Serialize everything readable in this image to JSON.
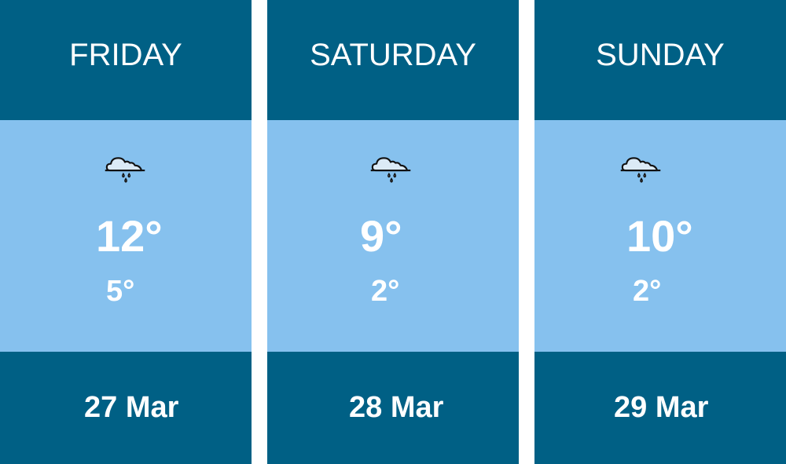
{
  "days": [
    {
      "name": "FRIDAY",
      "icon": "rain-cloud-icon",
      "high": "12°",
      "low": "5°",
      "date": "27 Mar"
    },
    {
      "name": "SATURDAY",
      "icon": "rain-cloud-icon",
      "high": "9°",
      "low": "2°",
      "date": "28 Mar"
    },
    {
      "name": "SUNDAY",
      "icon": "rain-cloud-icon",
      "high": "10°",
      "low": "2°",
      "date": "29 Mar"
    }
  ],
  "colors": {
    "dark": "#006085",
    "light": "#86c1ee",
    "text": "#ffffff"
  }
}
